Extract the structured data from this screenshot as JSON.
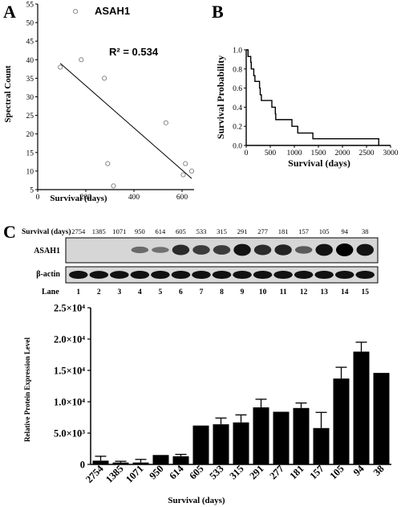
{
  "panels": {
    "a": "A",
    "b": "B",
    "c": "C"
  },
  "chart_data": [
    {
      "type": "scatter",
      "panel": "A",
      "title": "ASAH1",
      "annotation": "R² = 0.534",
      "xlabel": "Survival (days)",
      "ylabel": "Spectral Count",
      "xlim": [
        0,
        650
      ],
      "ylim": [
        5,
        55
      ],
      "xticks": [
        0,
        200,
        400,
        600
      ],
      "yticks": [
        5,
        10,
        15,
        20,
        25,
        30,
        35,
        40,
        45,
        50,
        55
      ],
      "points": [
        {
          "x": 94,
          "y": 38
        },
        {
          "x": 157,
          "y": 53
        },
        {
          "x": 181,
          "y": 40
        },
        {
          "x": 277,
          "y": 35
        },
        {
          "x": 291,
          "y": 12
        },
        {
          "x": 315,
          "y": 6
        },
        {
          "x": 533,
          "y": 23
        },
        {
          "x": 605,
          "y": 9
        },
        {
          "x": 614,
          "y": 12
        },
        {
          "x": 640,
          "y": 10
        }
      ],
      "regression": {
        "x": [
          94,
          640
        ],
        "y": [
          39,
          8
        ]
      },
      "marker_color": "#888888"
    },
    {
      "type": "line",
      "panel": "B",
      "subtype": "kaplan-meier",
      "xlabel": "Survival (days)",
      "ylabel": "Survival Probability",
      "xlim": [
        0,
        3000
      ],
      "ylim": [
        0,
        1.0
      ],
      "xticks": [
        0,
        500,
        1000,
        1500,
        2000,
        2500,
        3000
      ],
      "yticks": [
        0.0,
        0.2,
        0.4,
        0.6,
        0.8,
        1.0
      ],
      "steps": {
        "x": [
          0,
          38,
          94,
          105,
          157,
          181,
          277,
          291,
          315,
          533,
          605,
          614,
          950,
          1071,
          1385,
          2754,
          2754
        ],
        "y": [
          1.0,
          0.93,
          0.87,
          0.8,
          0.73,
          0.67,
          0.6,
          0.53,
          0.47,
          0.4,
          0.33,
          0.27,
          0.2,
          0.13,
          0.07,
          0.07,
          0.0
        ]
      }
    },
    {
      "type": "bar",
      "panel": "C",
      "xlabel": "Survival (days)",
      "ylabel": "Relative Protein Expression Level",
      "ylim": [
        0,
        25000
      ],
      "ytick_labels": [
        "0",
        "5.0×10³",
        "1.0×10⁴",
        "1.5×10⁴",
        "2.0×10⁴",
        "2.5×10⁴"
      ],
      "ytick_values": [
        0,
        5000,
        10000,
        15000,
        20000,
        25000
      ],
      "categories": [
        "2754",
        "1385",
        "1071",
        "950",
        "614",
        "605",
        "533",
        "315",
        "291",
        "277",
        "181",
        "157",
        "105",
        "94",
        "38"
      ],
      "values": [
        600,
        300,
        300,
        1500,
        1300,
        6200,
        6400,
        6700,
        9100,
        8400,
        9000,
        5800,
        13700,
        18000,
        14600
      ],
      "errors": [
        700,
        200,
        500,
        0,
        300,
        0,
        1000,
        1200,
        1300,
        0,
        800,
        2500,
        1800,
        1500,
        0
      ]
    }
  ],
  "blot": {
    "survival_label": "Survival (days)",
    "survival_values": [
      "2754",
      "1385",
      "1071",
      "950",
      "614",
      "605",
      "533",
      "315",
      "291",
      "277",
      "181",
      "157",
      "105",
      "94",
      "38"
    ],
    "asah1_label": "ASAH1",
    "actin_label": "β-actin",
    "lane_label": "Lane",
    "lanes": [
      "1",
      "2",
      "3",
      "4",
      "5",
      "6",
      "7",
      "8",
      "9",
      "10",
      "11",
      "12",
      "13",
      "14",
      "15"
    ],
    "asah1_intensity": [
      0.0,
      0.0,
      0.0,
      0.35,
      0.3,
      0.75,
      0.65,
      0.65,
      0.9,
      0.75,
      0.8,
      0.45,
      0.9,
      1.0,
      0.9
    ],
    "actin_intensity": [
      0.9,
      0.85,
      0.85,
      0.9,
      0.9,
      0.9,
      0.9,
      0.9,
      0.9,
      0.9,
      0.9,
      0.9,
      0.9,
      0.9,
      0.9
    ]
  }
}
